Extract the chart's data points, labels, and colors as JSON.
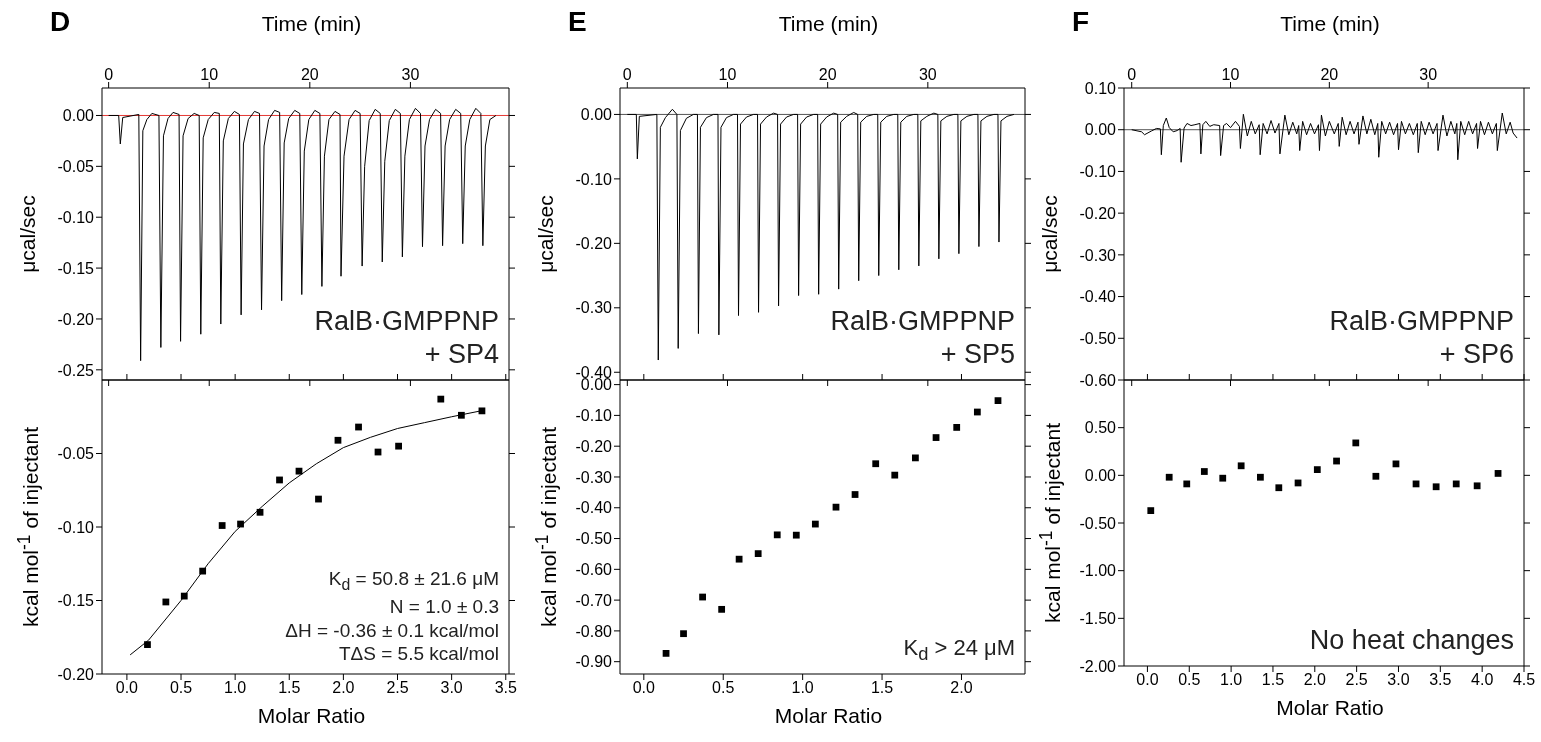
{
  "chart_data": [
    {
      "type": "line",
      "title": "D",
      "xlabel": "Time (min)",
      "ylabel": "μcal/sec",
      "xlim": [
        -0.66,
        39.8
      ],
      "xticks": [
        0,
        10,
        20,
        30
      ],
      "ylim": [
        -0.26,
        0.027
      ],
      "yticks": [
        {
          "value": 0,
          "label": "0.00"
        },
        {
          "value": -0.05,
          "label": "-0.05"
        },
        {
          "value": -0.1,
          "label": "-0.10"
        },
        {
          "value": -0.15,
          "label": "-0.15"
        },
        {
          "value": -0.2,
          "label": "-0.20"
        },
        {
          "value": -0.25,
          "label": "-0.25"
        }
      ],
      "ref_lines": [
        {
          "axis": "y",
          "value": 0,
          "color": "#e53935"
        }
      ],
      "annotations": [
        "RalB·GMPPNP",
        "+ SP4"
      ],
      "series": [
        {
          "color": "#000000",
          "x": [
            0,
            1.0,
            1.16,
            1.4,
            3.0,
            3.18,
            3.4,
            3.8,
            4.3,
            5.0,
            5.19,
            5.45,
            5.9,
            6.4,
            7.0,
            7.15,
            7.4,
            7.9,
            8.5,
            9.0,
            9.16,
            9.4,
            9.9,
            10.5,
            11.0,
            11.15,
            11.4,
            11.9,
            12.5,
            13.0,
            13.17,
            13.4,
            13.9,
            14.5,
            15.0,
            15.2,
            15.45,
            15.9,
            16.5,
            17.0,
            17.2,
            17.45,
            17.9,
            18.5,
            19.0,
            19.2,
            19.45,
            19.9,
            20.5,
            21.0,
            21.2,
            21.45,
            21.9,
            22.5,
            23.0,
            23.1,
            23.4,
            23.9,
            24.5,
            25.0,
            25.2,
            25.45,
            25.9,
            26.5,
            27.0,
            27.2,
            27.45,
            27.9,
            28.5,
            29.0,
            29.2,
            29.45,
            29.9,
            30.5,
            31.0,
            31.2,
            31.45,
            31.9,
            32.5,
            33.0,
            33.2,
            33.45,
            33.9,
            34.5,
            35.0,
            35.2,
            35.45,
            35.9,
            36.5,
            37.0,
            37.2,
            37.45,
            37.9,
            38.5
          ],
          "values": [
            0,
            0,
            -0.028,
            -0.002,
            0.001,
            -0.241,
            -0.015,
            -0.004,
            0.002,
            0,
            -0.228,
            -0.02,
            -0.003,
            0.003,
            0.001,
            -0.222,
            -0.02,
            -0.003,
            0.002,
            0,
            -0.215,
            -0.022,
            -0.004,
            0.003,
            0.002,
            -0.205,
            -0.025,
            -0.003,
            0.004,
            0.001,
            -0.196,
            -0.028,
            -0.004,
            0.004,
            0.002,
            -0.191,
            -0.03,
            -0.004,
            0.005,
            0.003,
            -0.182,
            -0.027,
            -0.003,
            0.005,
            0.002,
            -0.176,
            -0.035,
            -0.004,
            0.005,
            0.002,
            -0.168,
            -0.04,
            -0.004,
            0.004,
            0.001,
            -0.158,
            -0.04,
            -0.004,
            0.005,
            0.002,
            -0.148,
            -0.05,
            -0.005,
            0.006,
            0.002,
            -0.144,
            -0.045,
            -0.005,
            0.006,
            0.002,
            -0.139,
            -0.04,
            -0.004,
            0.007,
            0.002,
            -0.129,
            -0.03,
            -0.004,
            0.006,
            0.002,
            -0.128,
            -0.03,
            -0.004,
            0.006,
            0.002,
            -0.126,
            -0.03,
            -0.004,
            0.007,
            0.002,
            -0.128,
            -0.03,
            -0.004,
            0
          ]
        }
      ]
    },
    {
      "type": "line",
      "title": "E",
      "xlabel": "Time (min)",
      "ylabel": "μcal/sec",
      "xlim": [
        -0.73,
        39.7
      ],
      "xticks": [
        0,
        10,
        20,
        30
      ],
      "ylim": [
        -0.412,
        0.041
      ],
      "yticks": [
        {
          "value": 0,
          "label": "0.00"
        },
        {
          "value": -0.1,
          "label": "-0.10"
        },
        {
          "value": -0.2,
          "label": "-0.20"
        },
        {
          "value": -0.3,
          "label": "-0.30"
        },
        {
          "value": -0.4,
          "label": "-0.40"
        }
      ],
      "ref_lines": [
        {
          "axis": "y",
          "value": 0,
          "color": "#555555"
        }
      ],
      "annotations": [
        "RalB·GMPPNP",
        "+ SP5"
      ],
      "series": [
        {
          "color": "#000000",
          "x": [
            0,
            0.9,
            1.0,
            1.2,
            2.95,
            3.09,
            3.3,
            3.8,
            4.5,
            4.95,
            5.08,
            5.3,
            5.9,
            6.6,
            7.0,
            7.1,
            7.3,
            7.9,
            8.6,
            9.05,
            9.14,
            9.35,
            9.9,
            10.6,
            11.0,
            11.1,
            11.3,
            11.9,
            12.6,
            13.0,
            13.1,
            13.3,
            13.9,
            14.6,
            15.0,
            15.1,
            15.3,
            15.9,
            16.6,
            17.0,
            17.1,
            17.3,
            17.9,
            18.6,
            19.0,
            19.1,
            19.3,
            19.9,
            20.6,
            21.0,
            21.1,
            21.3,
            21.9,
            22.6,
            23.0,
            23.1,
            23.3,
            23.9,
            24.6,
            25.0,
            25.1,
            25.3,
            25.9,
            26.6,
            27.0,
            27.1,
            27.3,
            27.9,
            28.6,
            29.0,
            29.1,
            29.3,
            29.9,
            30.6,
            31.0,
            31.1,
            31.3,
            31.9,
            32.6,
            33.0,
            33.1,
            33.3,
            33.9,
            34.6,
            35.0,
            35.1,
            35.3,
            35.9,
            36.6,
            37.0,
            37.1,
            37.3,
            37.9,
            38.6
          ],
          "values": [
            0,
            0,
            -0.069,
            -0.003,
            0,
            -0.381,
            -0.02,
            -0.005,
            0.008,
            0,
            -0.363,
            -0.025,
            -0.006,
            0,
            0,
            -0.34,
            -0.02,
            -0.005,
            0,
            0,
            -0.342,
            -0.02,
            -0.005,
            0,
            0,
            -0.312,
            -0.015,
            -0.004,
            0,
            0,
            -0.307,
            -0.015,
            -0.004,
            0.002,
            0,
            -0.297,
            -0.015,
            -0.004,
            0,
            0,
            -0.281,
            -0.015,
            -0.004,
            0,
            0,
            -0.279,
            -0.015,
            -0.004,
            0.002,
            0,
            -0.271,
            -0.012,
            -0.003,
            0.003,
            0,
            -0.258,
            -0.012,
            -0.003,
            0,
            0,
            -0.25,
            -0.012,
            -0.003,
            0,
            0,
            -0.241,
            -0.012,
            -0.003,
            0,
            0,
            -0.235,
            -0.01,
            -0.003,
            0.002,
            0,
            -0.224,
            -0.01,
            -0.003,
            0,
            0,
            -0.216,
            -0.01,
            -0.003,
            0,
            0,
            -0.205,
            -0.01,
            -0.003,
            0,
            0,
            -0.198,
            -0.01,
            -0.003,
            0
          ]
        }
      ]
    },
    {
      "type": "line",
      "title": "F",
      "xlabel": "Time (min)",
      "ylabel": "μcal/sec",
      "xlim": [
        -0.78,
        39.7
      ],
      "xticks": [
        0,
        10,
        20,
        30
      ],
      "ylim": [
        -0.6,
        0.1
      ],
      "yticks": [
        {
          "value": 0.1,
          "label": "0.10"
        },
        {
          "value": 0,
          "label": "0.00"
        },
        {
          "value": -0.1,
          "label": "-0.10"
        },
        {
          "value": -0.2,
          "label": "-0.20"
        },
        {
          "value": -0.3,
          "label": "-0.30"
        },
        {
          "value": -0.4,
          "label": "-0.40"
        },
        {
          "value": -0.5,
          "label": "-0.50"
        },
        {
          "value": -0.6,
          "label": "-0.60"
        }
      ],
      "ref_lines": [
        {
          "axis": "y",
          "value": 0,
          "color": "#555555"
        }
      ],
      "annotations": [
        "RalB·GMPPNP",
        "+ SP6"
      ],
      "series": [
        {
          "color": "#000000",
          "x": [
            0,
            1,
            1.3,
            2,
            2.5,
            2.9,
            3,
            3.2,
            3.5,
            3.8,
            4.2,
            4.6,
            4.9,
            5,
            5.3,
            5.6,
            6,
            6.4,
            6.9,
            7,
            7.2,
            7.5,
            7.9,
            8.3,
            8.9,
            9,
            9.3,
            9.6,
            10,
            10.5,
            10.9,
            11,
            11.3,
            11.7,
            12.1,
            12.5,
            12.9,
            13,
            13.3,
            13.7,
            14.1,
            14.5,
            14.9,
            15,
            15.5,
            15.9,
            16.3,
            16.7,
            16.9,
            17,
            17.3,
            17.7,
            18.1,
            18.5,
            18.9,
            19,
            19.2,
            19.6,
            20,
            20.5,
            20.9,
            21,
            21.3,
            21.7,
            22.1,
            22.5,
            22.9,
            23,
            23.4,
            23.8,
            24.2,
            24.6,
            24.9,
            25,
            25.3,
            25.7,
            26.1,
            26.5,
            26.9,
            27,
            27.3,
            27.7,
            28.1,
            28.5,
            28.9,
            29,
            29.3,
            29.7,
            30.1,
            30.5,
            30.9,
            31,
            31.5,
            31.9,
            32.3,
            32.7,
            32.9,
            33,
            33.3,
            33.7,
            34.1,
            34.5,
            34.9,
            35,
            35.3,
            35.7,
            36.1,
            36.5,
            36.9,
            37,
            37.5,
            37.9,
            38.3,
            38.6,
            39
          ],
          "values": [
            0,
            -0.005,
            -0.012,
            -0.003,
            0.003,
            0.002,
            -0.06,
            0.01,
            0.028,
            0.005,
            -0.005,
            -0.002,
            0.003,
            -0.078,
            0.004,
            0.015,
            0.01,
            0.012,
            0.015,
            -0.058,
            0.012,
            0.02,
            0.008,
            0.012,
            0.01,
            -0.062,
            0.01,
            0.015,
            0.005,
            0.02,
            0.008,
            -0.045,
            0.037,
            -0.015,
            0.02,
            -0.01,
            0.012,
            -0.06,
            0.015,
            -0.01,
            0.022,
            -0.008,
            0.015,
            -0.058,
            0.035,
            -0.012,
            0.018,
            -0.01,
            0.01,
            -0.05,
            0.02,
            -0.012,
            0.015,
            -0.01,
            0.012,
            -0.05,
            0.035,
            -0.015,
            0.02,
            -0.01,
            0.015,
            -0.04,
            0.03,
            -0.012,
            0.02,
            -0.01,
            0.018,
            -0.035,
            0.033,
            -0.01,
            0.025,
            -0.012,
            0.015,
            -0.066,
            0.02,
            -0.01,
            0.018,
            -0.012,
            0.015,
            -0.048,
            0.02,
            -0.01,
            0.015,
            -0.012,
            0.015,
            -0.055,
            0.02,
            -0.012,
            0.018,
            -0.01,
            0.015,
            -0.05,
            0.035,
            -0.015,
            0.02,
            -0.01,
            0.015,
            -0.072,
            0.02,
            -0.012,
            0.02,
            -0.01,
            0.015,
            -0.045,
            0.02,
            -0.012,
            0.018,
            -0.01,
            0.015,
            -0.05,
            0.04,
            -0.01,
            0.018,
            -0.008,
            -0.02
          ]
        }
      ]
    },
    {
      "type": "scatter",
      "xlabel": "Molar Ratio",
      "ylabel": "kcal mol$^{-1}$ of injectant",
      "xlim": [
        -0.23,
        3.53
      ],
      "xticks": [
        {
          "value": 0,
          "label": "0.0"
        },
        {
          "value": 0.5,
          "label": "0.5"
        },
        {
          "value": 1,
          "label": "1.0"
        },
        {
          "value": 1.5,
          "label": "1.5"
        },
        {
          "value": 2,
          "label": "2.0"
        },
        {
          "value": 2.5,
          "label": "2.5"
        },
        {
          "value": 3,
          "label": "3.0"
        },
        {
          "value": 3.5,
          "label": "3.5"
        }
      ],
      "ylim": [
        -0.2,
        0
      ],
      "yticks": [
        {
          "value": -0.2,
          "label": "-0.20"
        },
        {
          "value": -0.15,
          "label": "-0.15"
        },
        {
          "value": -0.1,
          "label": "-0.10"
        },
        {
          "value": -0.05,
          "label": "-0.05"
        }
      ],
      "annotations": [
        "K$_{d}$ = 50.8 ± 21.6 μM",
        "N = 1.0 ± 0.3",
        "ΔH = -0.36 ± 0.1 kcal/mol",
        "TΔS = 5.5 kcal/mol"
      ],
      "series": [
        {
          "marker": "square",
          "color": "#000000",
          "x": [
            0.19,
            0.36,
            0.53,
            0.7,
            0.88,
            1.05,
            1.23,
            1.41,
            1.59,
            1.77,
            1.95,
            2.14,
            2.32,
            2.51,
            2.9,
            3.09,
            3.28
          ],
          "values": [
            -0.18,
            -0.151,
            -0.147,
            -0.13,
            -0.099,
            -0.098,
            -0.09,
            -0.068,
            -0.062,
            -0.081,
            -0.041,
            -0.032,
            -0.049,
            -0.045,
            -0.013,
            -0.024,
            -0.021
          ]
        },
        {
          "type": "line",
          "color": "#000000",
          "x": [
            0.03,
            0.2,
            0.5,
            0.75,
            1.0,
            1.25,
            1.5,
            1.75,
            2.0,
            2.25,
            2.5,
            2.75,
            3.0,
            3.27
          ],
          "values": [
            -0.187,
            -0.177,
            -0.15,
            -0.125,
            -0.103,
            -0.086,
            -0.07,
            -0.057,
            -0.046,
            -0.039,
            -0.033,
            -0.029,
            -0.025,
            -0.021
          ]
        }
      ]
    },
    {
      "type": "scatter",
      "xlabel": "Molar Ratio",
      "ylabel": "kcal mol$^{-1}$ of injectant",
      "xlim": [
        -0.15,
        2.4
      ],
      "xticks": [
        {
          "value": 0,
          "label": "0.0"
        },
        {
          "value": 0.5,
          "label": "0.5"
        },
        {
          "value": 1,
          "label": "1.0"
        },
        {
          "value": 1.5,
          "label": "1.5"
        },
        {
          "value": 2,
          "label": "2.0"
        }
      ],
      "ylim": [
        -0.94,
        0.015
      ],
      "yticks": [
        {
          "value": 0,
          "label": "0.00"
        },
        {
          "value": -0.1,
          "label": "-0.10"
        },
        {
          "value": -0.2,
          "label": "-0.20"
        },
        {
          "value": -0.3,
          "label": "-0.30"
        },
        {
          "value": -0.4,
          "label": "-0.40"
        },
        {
          "value": -0.5,
          "label": "-0.50"
        },
        {
          "value": -0.6,
          "label": "-0.60"
        },
        {
          "value": -0.7,
          "label": "-0.70"
        },
        {
          "value": -0.8,
          "label": "-0.80"
        },
        {
          "value": -0.9,
          "label": "-0.90"
        }
      ],
      "marker": "square",
      "annotations": [
        "K$_{d}$ > 24 μM"
      ],
      "series": [
        {
          "color": "#000000",
          "x": [
            0.14,
            0.25,
            0.37,
            0.49,
            0.6,
            0.72,
            0.84,
            0.96,
            1.08,
            1.21,
            1.33,
            1.46,
            1.58,
            1.71,
            1.84,
            1.97,
            2.1,
            2.23
          ],
          "values": [
            -0.873,
            -0.809,
            -0.69,
            -0.73,
            -0.567,
            -0.549,
            -0.488,
            -0.489,
            -0.453,
            -0.398,
            -0.357,
            -0.257,
            -0.294,
            -0.238,
            -0.172,
            -0.139,
            -0.089,
            -0.052
          ]
        }
      ]
    },
    {
      "type": "scatter",
      "xlabel": "Molar Ratio",
      "ylabel": "kcal mol$^{-1}$ of injectant",
      "xlim": [
        -0.28,
        4.5
      ],
      "xticks": [
        {
          "value": 0,
          "label": "0.0"
        },
        {
          "value": 0.5,
          "label": "0.5"
        },
        {
          "value": 1,
          "label": "1.0"
        },
        {
          "value": 1.5,
          "label": "1.5"
        },
        {
          "value": 2,
          "label": "2.0"
        },
        {
          "value": 2.5,
          "label": "2.5"
        },
        {
          "value": 3,
          "label": "3.0"
        },
        {
          "value": 3.5,
          "label": "3.5"
        },
        {
          "value": 4,
          "label": "4.0"
        },
        {
          "value": 4.5,
          "label": "4.5"
        }
      ],
      "ylim": [
        -2,
        1
      ],
      "yticks": [
        {
          "value": 0.5,
          "label": "0.50"
        },
        {
          "value": 0,
          "label": "0.00"
        },
        {
          "value": -0.5,
          "label": "-0.50"
        },
        {
          "value": -1,
          "label": "-1.00"
        },
        {
          "value": -1.5,
          "label": "-1.50"
        },
        {
          "value": -2,
          "label": "-2.00"
        }
      ],
      "marker": "square",
      "annotations": [
        "No heat changes"
      ],
      "series": [
        {
          "color": "#000000",
          "x": [
            0.04,
            0.26,
            0.47,
            0.68,
            0.9,
            1.12,
            1.35,
            1.57,
            1.8,
            2.03,
            2.26,
            2.49,
            2.73,
            2.97,
            3.21,
            3.45,
            3.69,
            3.94,
            4.19
          ],
          "values": [
            -0.37,
            -0.02,
            -0.09,
            0.04,
            -0.03,
            0.1,
            -0.02,
            -0.13,
            -0.08,
            0.06,
            0.15,
            0.34,
            -0.01,
            0.12,
            -0.09,
            -0.12,
            -0.09,
            -0.11,
            0.02
          ]
        }
      ]
    }
  ]
}
